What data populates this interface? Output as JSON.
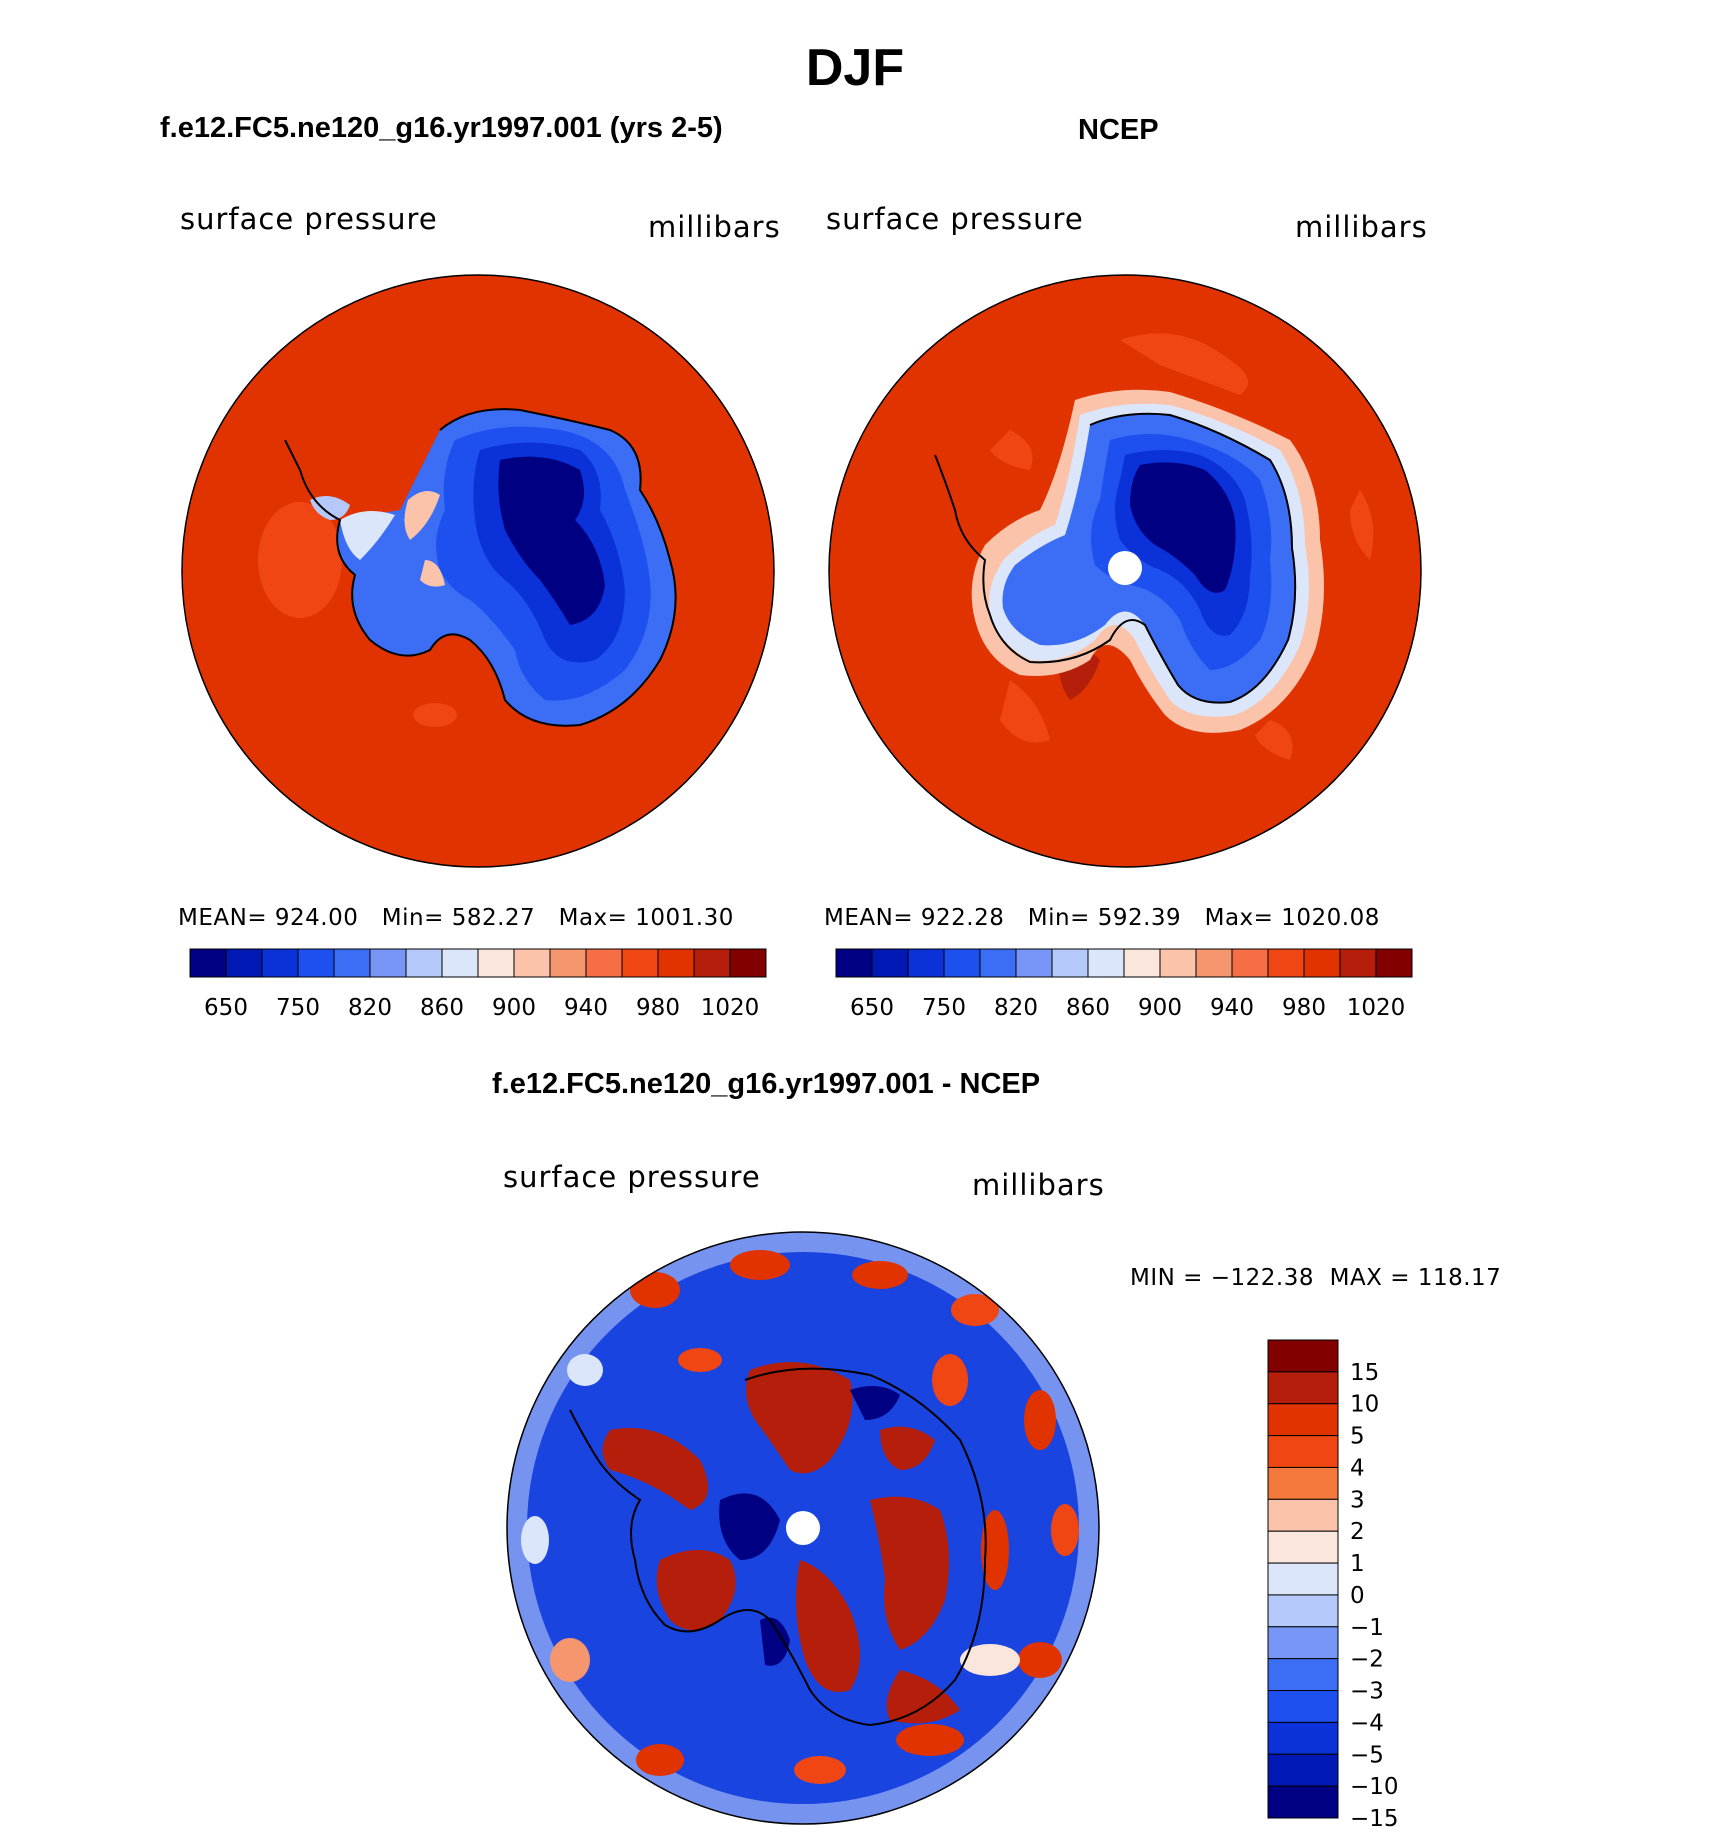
{
  "page_title": "DJF",
  "panels": [
    {
      "title": "f.e12.FC5.ne120_g16.yr1997.001 (yrs 2-5)",
      "left_label": "surface pressure",
      "right_label": "millibars",
      "stats": "MEAN= 924.00   Min= 582.27   Max= 1001.30",
      "ocean_color": "#e03300",
      "has_pole_hole": false
    },
    {
      "title": "NCEP",
      "left_label": "surface pressure",
      "right_label": "millibars",
      "stats": "MEAN= 922.28   Min= 592.39   Max= 1020.08",
      "ocean_color": "#e03300",
      "has_pole_hole": true
    },
    {
      "title": "f.e12.FC5.ne120_g16.yr1997.001 - NCEP",
      "left_label": "surface pressure",
      "right_label": "millibars",
      "stats": "MIN = −122.38  MAX = 118.17",
      "ocean_color": "#1a44e0",
      "has_pole_hole": true
    }
  ],
  "colorbar_abs": {
    "colors": [
      "#000082",
      "#0019b4",
      "#0a32d8",
      "#1e50f0",
      "#3c6ef5",
      "#7896f5",
      "#b4c8fa",
      "#dce6fa",
      "#fae6dc",
      "#fac3aa",
      "#f5966e",
      "#f56e46",
      "#f04614",
      "#e03300",
      "#b41e0a",
      "#820000"
    ],
    "tick_labels": [
      "650",
      "750",
      "820",
      "860",
      "900",
      "940",
      "980",
      "1020"
    ]
  },
  "colorbar_diff": {
    "colors": [
      "#820000",
      "#b41e0a",
      "#e03300",
      "#f04614",
      "#f5783c",
      "#fac3aa",
      "#fae6dc",
      "#dce6fa",
      "#b4c8fa",
      "#7896f5",
      "#3c6ef5",
      "#1e50f0",
      "#0a32d8",
      "#0019b4",
      "#000082"
    ],
    "tick_labels": [
      "15",
      "10",
      "5",
      "4",
      "3",
      "2",
      "1",
      "0",
      "−1",
      "−2",
      "−3",
      "−4",
      "−5",
      "−10",
      "−15"
    ]
  }
}
